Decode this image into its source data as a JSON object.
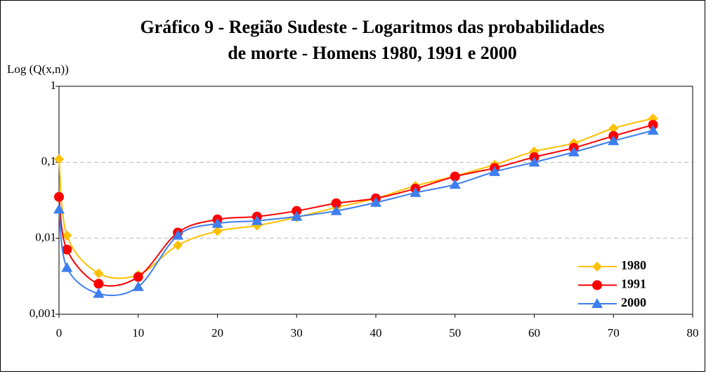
{
  "chart_data": {
    "type": "line",
    "title": [
      "Gráfico 9 - Região Sudeste - Logaritmos das probabilidades",
      "de morte - Homens 1980, 1991 e 2000"
    ],
    "y_label": "Log (Q(x,n))",
    "x": [
      0,
      1,
      5,
      10,
      15,
      20,
      25,
      30,
      35,
      40,
      45,
      50,
      55,
      60,
      65,
      70,
      75
    ],
    "series": [
      {
        "name": "1980",
        "color": "#ffc000",
        "marker": "diamond",
        "values": [
          0.11,
          0.0109,
          0.00346,
          0.0033,
          0.0081,
          0.0124,
          0.0147,
          0.0189,
          0.0254,
          0.0335,
          0.049,
          0.066,
          0.093,
          0.139,
          0.179,
          0.28,
          0.377
        ]
      },
      {
        "name": "1991",
        "color": "#ff0000",
        "marker": "circle",
        "values": [
          0.035,
          0.0071,
          0.00252,
          0.0031,
          0.0119,
          0.0177,
          0.0193,
          0.0229,
          0.0289,
          0.0335,
          0.045,
          0.065,
          0.084,
          0.117,
          0.155,
          0.222,
          0.311
        ]
      },
      {
        "name": "2000",
        "color": "#3d7ef0",
        "marker": "triangle",
        "values": [
          0.024,
          0.0041,
          0.00187,
          0.0023,
          0.0109,
          0.0156,
          0.017,
          0.0193,
          0.0229,
          0.0295,
          0.0397,
          0.051,
          0.075,
          0.1,
          0.136,
          0.191,
          0.262
        ]
      }
    ],
    "xlim": [
      0,
      80
    ],
    "xticks": [
      0,
      10,
      20,
      30,
      40,
      50,
      60,
      70,
      80
    ],
    "ylim": [
      0.001,
      1
    ],
    "log_y": true,
    "yticks": [
      1,
      {
        "value": 0.1,
        "label": "0,1"
      },
      {
        "value": 0.01,
        "label": "0,01"
      },
      {
        "value": 0.001,
        "label": "0,001"
      }
    ],
    "grid": true,
    "legend": "lower right"
  }
}
